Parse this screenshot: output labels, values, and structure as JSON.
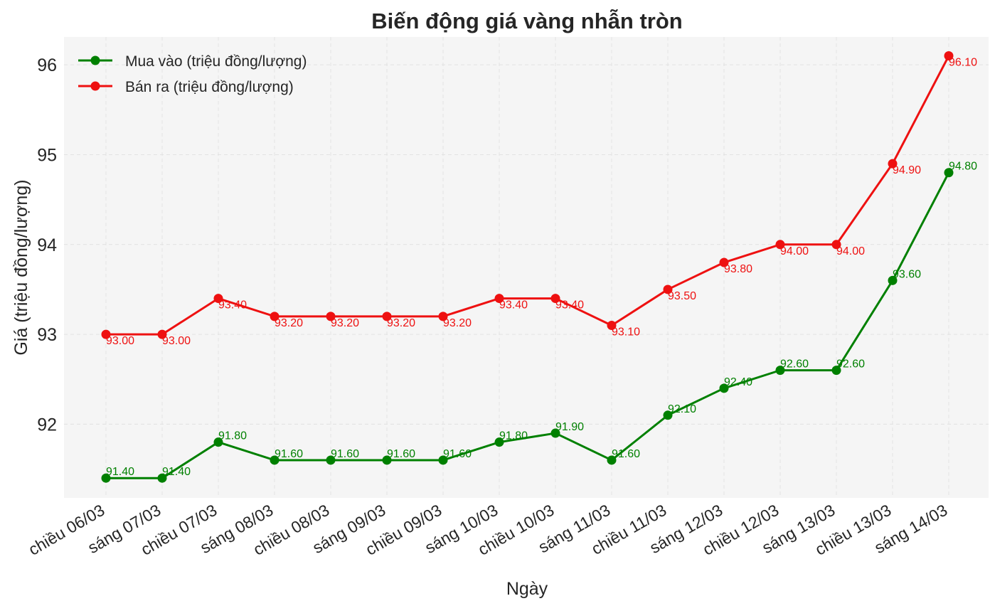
{
  "chart_data": {
    "type": "line",
    "title": "Biến động giá vàng nhẫn tròn",
    "xlabel": "Ngày",
    "ylabel": "Giá (triệu đồng/lượng)",
    "categories": [
      "chiều 06/03",
      "sáng 07/03",
      "chiều 07/03",
      "sáng 08/03",
      "chiều 08/03",
      "sáng 09/03",
      "chiều 09/03",
      "sáng 10/03",
      "chiều 10/03",
      "sáng 11/03",
      "chiều 11/03",
      "sáng 12/03",
      "chiều 12/03",
      "sáng 13/03",
      "chiều 13/03",
      "sáng 14/03"
    ],
    "ylim": [
      91.18,
      96.31
    ],
    "yticks": [
      92,
      93,
      94,
      95,
      96
    ],
    "grid": true,
    "legend_position": "top-left",
    "series": [
      {
        "name": "Mua vào (triệu đồng/lượng)",
        "color": "#008000",
        "values": [
          91.4,
          91.4,
          91.8,
          91.6,
          91.6,
          91.6,
          91.6,
          91.8,
          91.9,
          91.6,
          92.1,
          92.4,
          92.6,
          92.6,
          93.6,
          94.8
        ],
        "labels": [
          "91.40",
          "91.40",
          "91.80",
          "91.60",
          "91.60",
          "91.60",
          "91.60",
          "91.80",
          "91.90",
          "91.60",
          "92.10",
          "92.40",
          "92.60",
          "92.60",
          "93.60",
          "94.80"
        ]
      },
      {
        "name": "Bán ra (triệu đồng/lượng)",
        "color": "#ee1111",
        "values": [
          93.0,
          93.0,
          93.4,
          93.2,
          93.2,
          93.2,
          93.2,
          93.4,
          93.4,
          93.1,
          93.5,
          93.8,
          94.0,
          94.0,
          94.9,
          96.1
        ],
        "labels": [
          "93.00",
          "93.00",
          "93.40",
          "93.20",
          "93.20",
          "93.20",
          "93.20",
          "93.40",
          "93.40",
          "93.10",
          "93.50",
          "93.80",
          "94.00",
          "94.00",
          "94.90",
          "96.10"
        ]
      }
    ]
  }
}
